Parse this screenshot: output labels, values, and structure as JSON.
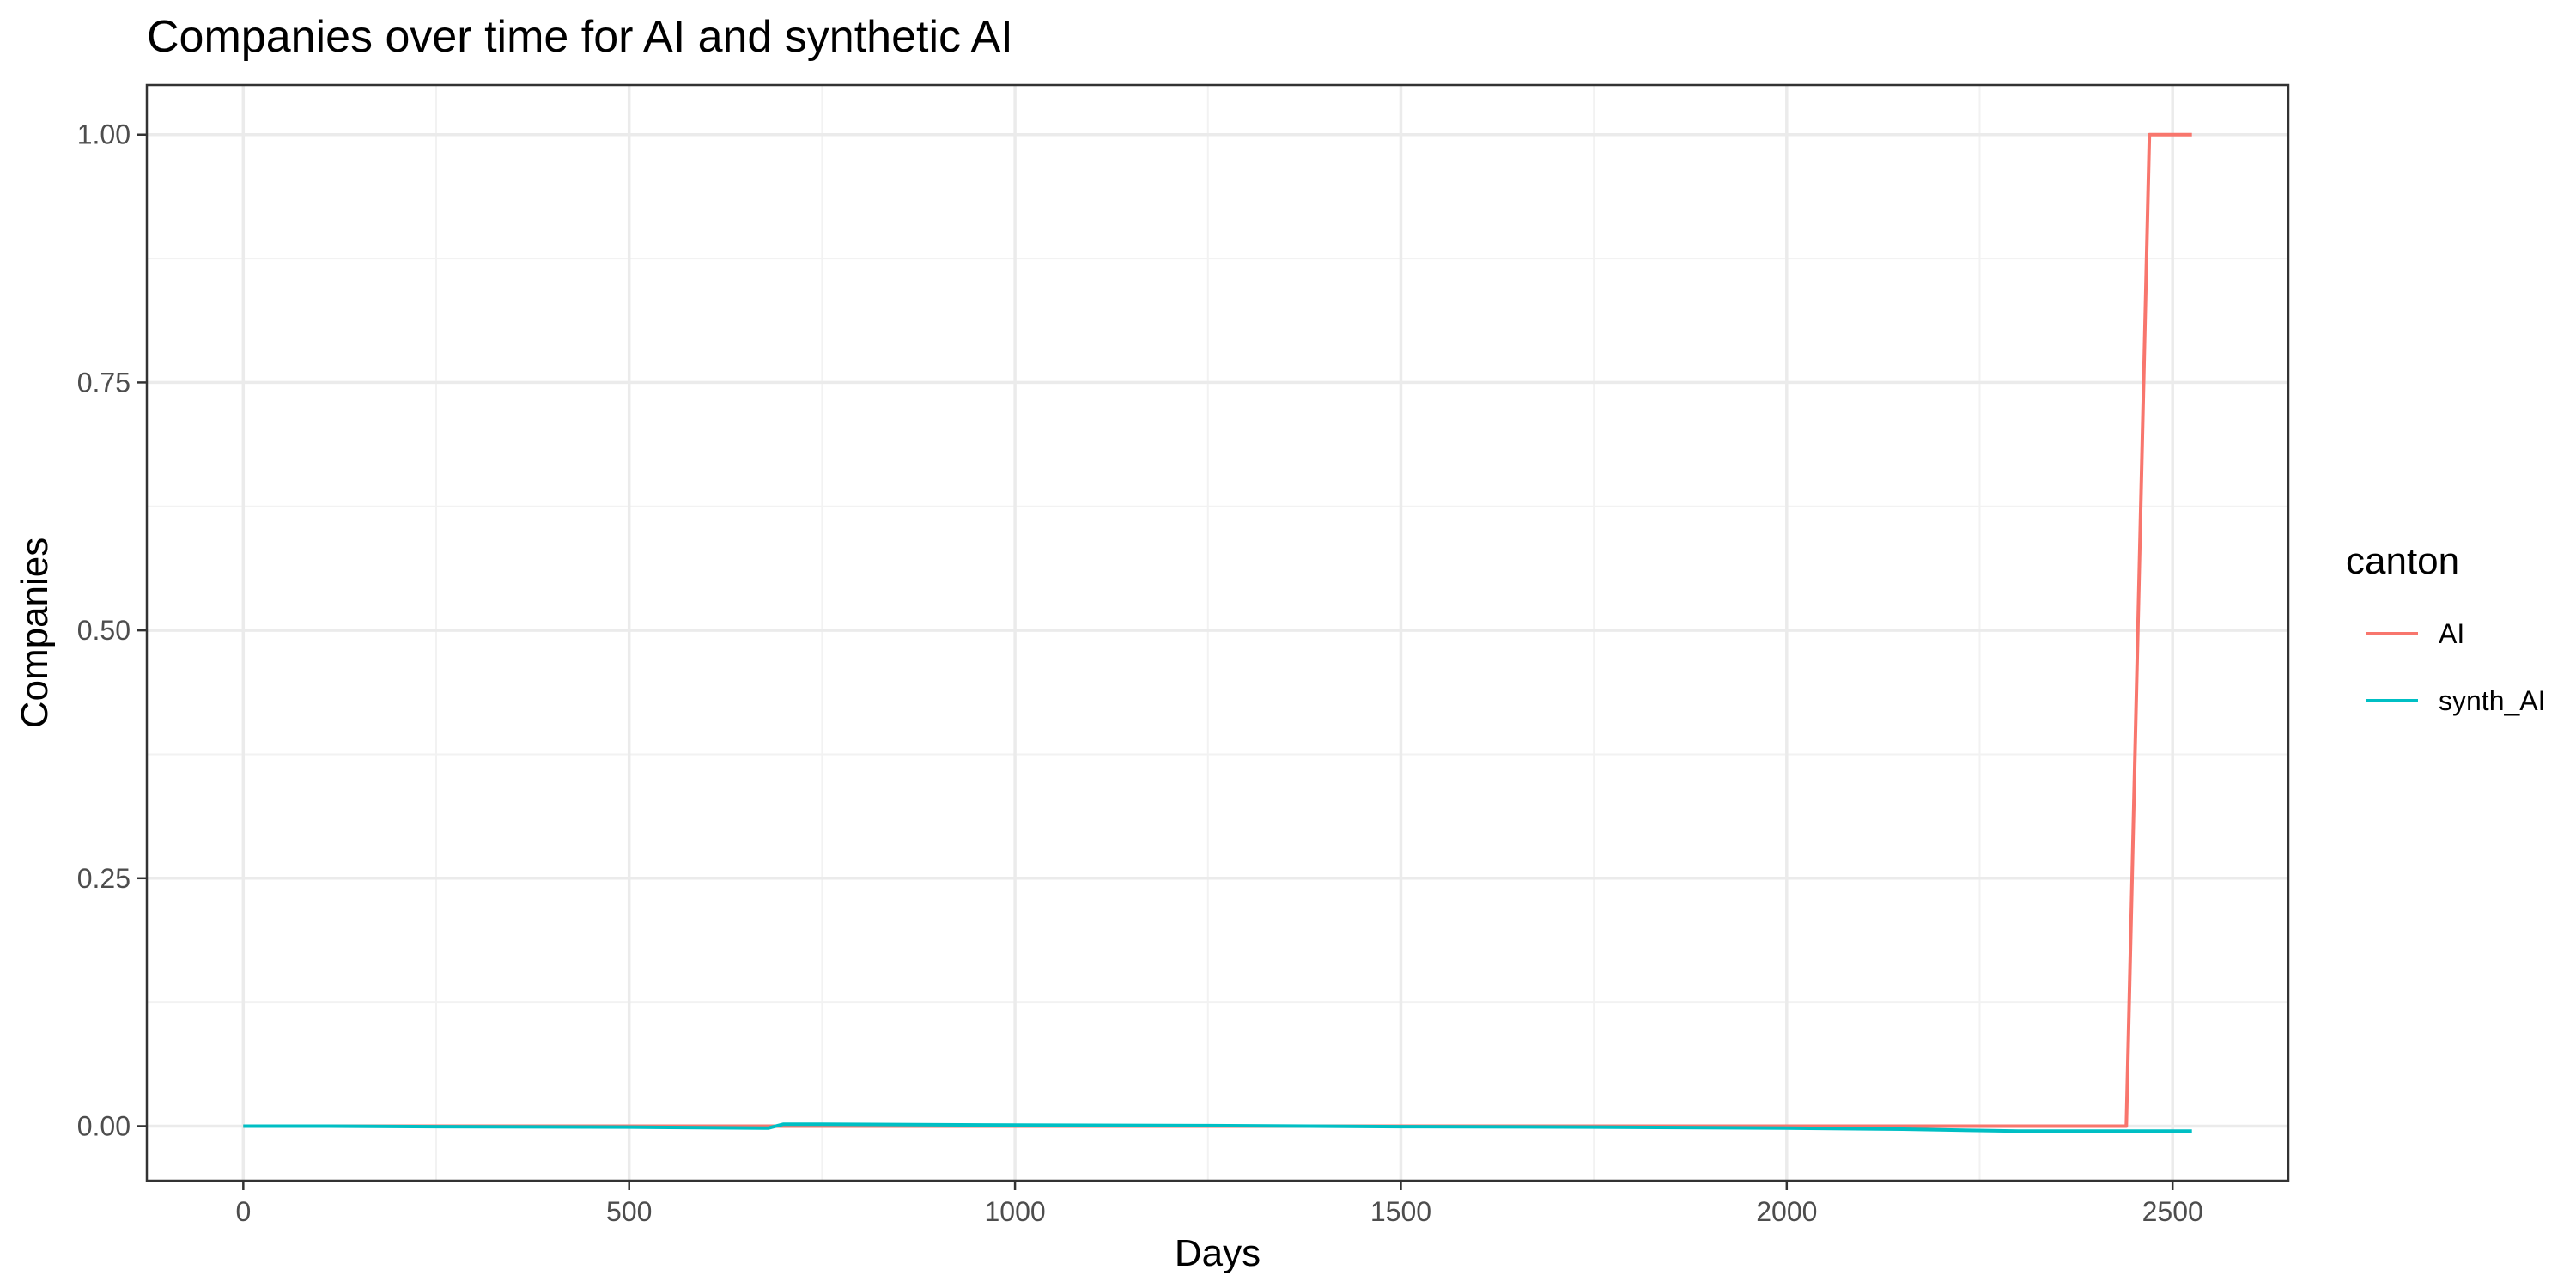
{
  "chart_data": {
    "type": "line",
    "title": "Companies over time for AI and synthetic AI",
    "xlabel": "Days",
    "ylabel": "Companies",
    "xlim": [
      -125,
      2650
    ],
    "ylim": [
      -0.055,
      1.05
    ],
    "xticks": [
      0,
      500,
      1000,
      1500,
      2000,
      2500
    ],
    "xtick_labels": [
      "0",
      "500",
      "1000",
      "1500",
      "2000",
      "2500"
    ],
    "xminor": [
      250,
      750,
      1250,
      1750,
      2250
    ],
    "yticks": [
      0,
      0.25,
      0.5,
      0.75,
      1.0
    ],
    "ytick_labels": [
      "0.00",
      "0.25",
      "0.50",
      "0.75",
      "1.00"
    ],
    "yminor": [
      0.125,
      0.375,
      0.625,
      0.875
    ],
    "grid": true,
    "legend": {
      "title": "canton",
      "placement": "right"
    },
    "series": [
      {
        "name": "AI",
        "color": "#F8766D",
        "x": [
          0,
          100,
          500,
          680,
          700,
          1000,
          1500,
          2000,
          2300,
          2440,
          2470,
          2500,
          2525
        ],
        "y": [
          0,
          0,
          0,
          0,
          0,
          0,
          0,
          0,
          0,
          0,
          1,
          1,
          1
        ]
      },
      {
        "name": "synth_AI",
        "color": "#00BFC4",
        "x": [
          0,
          100,
          250,
          500,
          680,
          700,
          750,
          1000,
          1250,
          1500,
          1750,
          2000,
          2150,
          2300,
          2450,
          2525
        ],
        "y": [
          0,
          0,
          -0.0005,
          -0.001,
          -0.002,
          0.002,
          0.002,
          0.001,
          0.0005,
          -0.0005,
          -0.001,
          -0.002,
          -0.003,
          -0.005,
          -0.005,
          -0.005
        ]
      }
    ]
  }
}
